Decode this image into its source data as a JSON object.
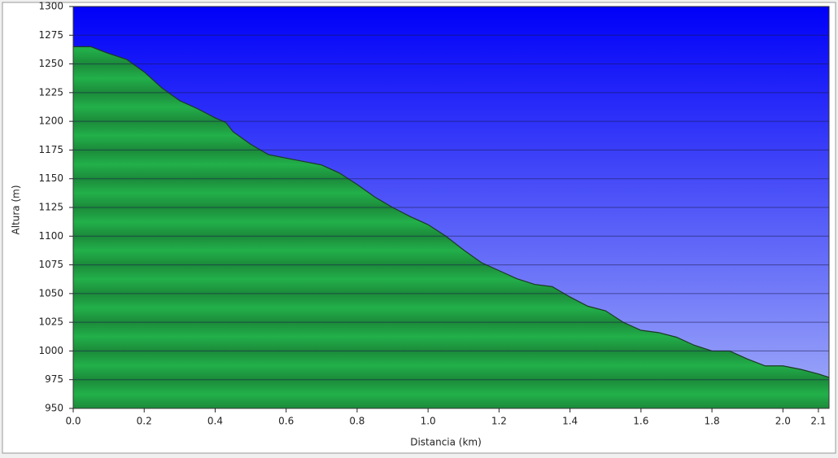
{
  "chart_data": {
    "type": "area",
    "x_label": "Distancia   (km)",
    "y_label": "Altura (m)",
    "x": [
      0,
      0.05,
      0.1,
      0.15,
      0.2,
      0.25,
      0.3,
      0.35,
      0.4,
      0.43,
      0.45,
      0.5,
      0.55,
      0.6,
      0.65,
      0.7,
      0.75,
      0.8,
      0.85,
      0.9,
      0.95,
      1.0,
      1.05,
      1.1,
      1.15,
      1.2,
      1.25,
      1.3,
      1.35,
      1.4,
      1.45,
      1.5,
      1.55,
      1.6,
      1.65,
      1.7,
      1.75,
      1.8,
      1.85,
      1.9,
      1.95,
      2.0,
      2.05,
      2.1,
      2.13
    ],
    "series": [
      {
        "color": "#1fa145",
        "values": [
          1265,
          1265,
          1259,
          1254,
          1243,
          1229,
          1218,
          1211,
          1203,
          1199,
          1191,
          1180,
          1171,
          1168,
          1165,
          1162,
          1155,
          1145,
          1134,
          1125,
          1117,
          1110,
          1100,
          1088,
          1077,
          1070,
          1063,
          1058,
          1056,
          1047,
          1039,
          1035,
          1025,
          1018,
          1016,
          1012,
          1005,
          1000,
          1000,
          993,
          987,
          987,
          984,
          980,
          977
        ]
      }
    ],
    "xlim": [
      0,
      2.13
    ],
    "ylim": [
      950,
      1300
    ],
    "xticks": [
      {
        "value": 0,
        "label": "0.0"
      },
      0.2,
      0.4,
      0.6,
      0.8,
      {
        "value": 1,
        "label": "1.0"
      },
      1.2,
      1.4,
      1.6,
      1.8,
      {
        "value": 2,
        "label": "2.0"
      },
      2.1
    ],
    "yticks": [
      950,
      975,
      1000,
      1025,
      1050,
      1075,
      1100,
      1125,
      1150,
      1175,
      1200,
      1225,
      1250,
      1275,
      1300
    ],
    "grid": true
  }
}
